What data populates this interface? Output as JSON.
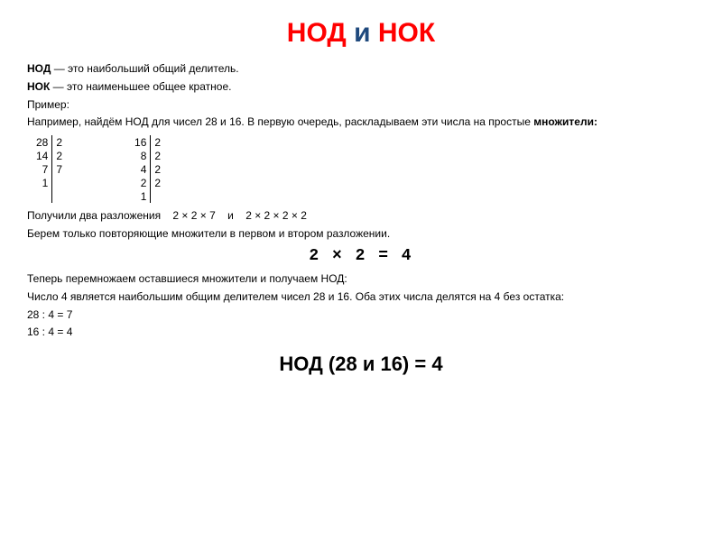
{
  "title": {
    "part1": "НОД",
    "mid": " и ",
    "part2": "НОК"
  },
  "def1_bold": "НОД",
  "def1_rest": " — это наибольший общий делитель.",
  "def2_bold": "НОК",
  "def2_rest": " — это наименьшее общее кратное.",
  "example_label": "Пример:",
  "example_text": "Например, найдём НОД для чисел 28 и 16. В первую очередь, раскладываем эти числа на простые ",
  "example_bold": "множители:",
  "table1": {
    "left": [
      "28",
      "14",
      "7",
      "1"
    ],
    "right": [
      "2",
      "2",
      "7",
      ""
    ]
  },
  "table2": {
    "left": [
      "16",
      "8",
      "4",
      "2",
      "1"
    ],
    "right": [
      "2",
      "2",
      "2",
      "2",
      ""
    ]
  },
  "got_two": "Получили два разложения",
  "expr1": "2 × 2 × 7",
  "mid_and": "и",
  "expr2": "2 × 2 × 2 × 2",
  "take_repeat": "Берем только повторяющие множители в первом и втором разложении.",
  "center_equation": "2  ×  2  =  4",
  "now_mul": "Теперь перемножаем оставшиеся множители и получаем НОД:",
  "explain": "Число 4 является наибольшим общим делителем чисел 28 и 16. Оба этих числа делятся на 4 без остатка:",
  "div1": "28 : 4 = 7",
  "div2": "16 : 4 = 4",
  "final": "НОД (28 и 16) = 4"
}
